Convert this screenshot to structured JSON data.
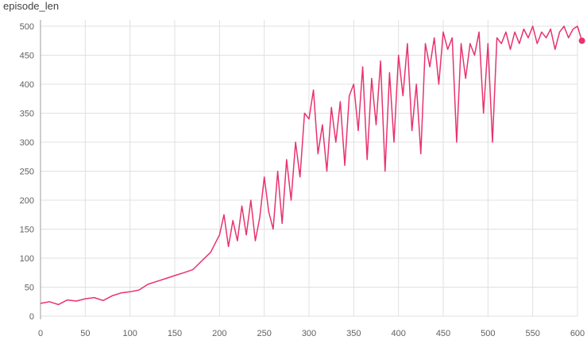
{
  "chart_data": {
    "type": "line",
    "title": "episode_len",
    "xlabel": "",
    "ylabel": "",
    "xlim": [
      0,
      600
    ],
    "ylim": [
      0,
      500
    ],
    "xticks": [
      0,
      50,
      100,
      150,
      200,
      250,
      300,
      350,
      400,
      450,
      500,
      550,
      600
    ],
    "yticks": [
      0,
      50,
      100,
      150,
      200,
      250,
      300,
      350,
      400,
      450,
      500
    ],
    "grid": true,
    "legend": "none",
    "color": "#e8336e",
    "series": [
      {
        "x": [
          0,
          10,
          20,
          30,
          40,
          50,
          60,
          70,
          80,
          90,
          100,
          110,
          120,
          130,
          140,
          150,
          160,
          170,
          180,
          190,
          200,
          205,
          210,
          215,
          220,
          225,
          230,
          235,
          240,
          245,
          250,
          255,
          260,
          265,
          270,
          275,
          280,
          285,
          290,
          295,
          300,
          305,
          310,
          315,
          320,
          325,
          330,
          335,
          340,
          345,
          350,
          355,
          360,
          365,
          370,
          375,
          380,
          385,
          390,
          395,
          400,
          405,
          410,
          415,
          420,
          425,
          430,
          435,
          440,
          445,
          450,
          455,
          460,
          465,
          470,
          475,
          480,
          485,
          490,
          495,
          500,
          505,
          510,
          515,
          520,
          525,
          530,
          535,
          540,
          545,
          550,
          555,
          560,
          565,
          570,
          575,
          580,
          585,
          590,
          595,
          600,
          605
        ],
        "y": [
          22,
          25,
          20,
          28,
          26,
          30,
          32,
          27,
          35,
          40,
          42,
          45,
          55,
          60,
          65,
          70,
          75,
          80,
          95,
          110,
          140,
          175,
          120,
          165,
          130,
          190,
          140,
          200,
          130,
          170,
          240,
          180,
          150,
          250,
          160,
          270,
          200,
          300,
          240,
          350,
          340,
          390,
          280,
          330,
          250,
          360,
          300,
          370,
          260,
          380,
          400,
          320,
          430,
          270,
          410,
          330,
          440,
          250,
          420,
          300,
          450,
          380,
          470,
          320,
          400,
          280,
          470,
          430,
          480,
          400,
          490,
          460,
          480,
          300,
          470,
          410,
          470,
          450,
          490,
          350,
          470,
          300,
          480,
          470,
          490,
          460,
          490,
          470,
          495,
          480,
          500,
          470,
          490,
          480,
          495,
          460,
          490,
          500,
          480,
          495,
          500,
          475
        ]
      }
    ]
  }
}
